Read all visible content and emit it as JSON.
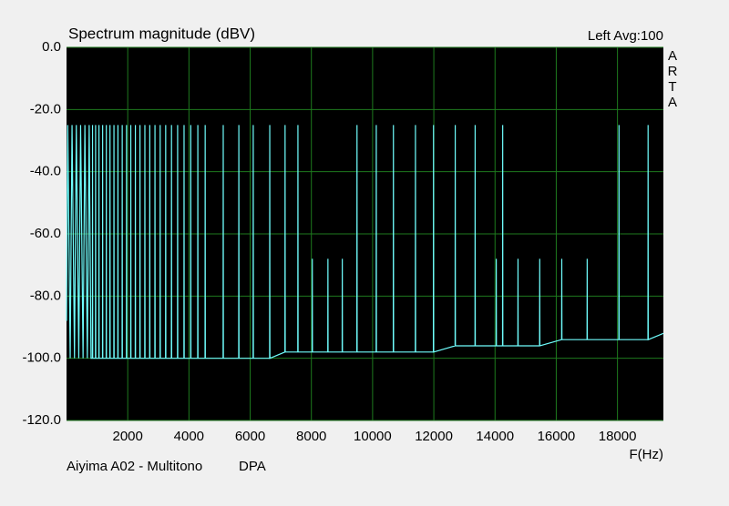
{
  "chart_data": {
    "type": "line",
    "title": "Spectrum magnitude (dBV)",
    "channel_info": "Left  Avg:100",
    "brand_letters": [
      "A",
      "R",
      "T",
      "A"
    ],
    "x_label": "F(Hz)",
    "footer_left": "Aiyima A02 - Multitono",
    "footer_right": "DPA",
    "color": "#6ffcfc",
    "grid": true,
    "xlim": [
      0,
      19500
    ],
    "xticks": [
      2000,
      4000,
      6000,
      8000,
      10000,
      12000,
      14000,
      16000,
      18000
    ],
    "ylim": [
      -120,
      0
    ],
    "yticks": [
      {
        "value": 0,
        "label": "0.0"
      },
      {
        "value": -20,
        "label": "-20.0"
      },
      {
        "value": -40,
        "label": "-40.0"
      },
      {
        "value": -60,
        "label": "-60.0"
      },
      {
        "value": -80,
        "label": "-80.0"
      },
      {
        "value": -100,
        "label": "-100.0"
      },
      {
        "value": -120,
        "label": "-120.0"
      }
    ],
    "x": [
      0,
      40,
      120,
      180,
      260,
      320,
      400,
      460,
      540,
      600,
      680,
      740,
      800,
      845,
      850,
      855,
      945,
      950,
      955,
      1055,
      1060,
      1065,
      1175,
      1180,
      1185,
      1295,
      1300,
      1305,
      1415,
      1420,
      1425,
      1545,
      1550,
      1555,
      1675,
      1680,
      1685,
      1815,
      1820,
      1825,
      1955,
      1960,
      1965,
      2095,
      2100,
      2105,
      2245,
      2250,
      2255,
      2395,
      2400,
      2405,
      2555,
      2560,
      2565,
      2715,
      2720,
      2725,
      2885,
      2890,
      2895,
      3055,
      3060,
      3065,
      3235,
      3240,
      3245,
      3425,
      3430,
      3435,
      3625,
      3630,
      3635,
      3835,
      3840,
      3845,
      4055,
      4060,
      4065,
      4285,
      4290,
      4295,
      4525,
      4530,
      4535,
      5115,
      5120,
      5125,
      5625,
      5630,
      5635,
      6095,
      6100,
      6105,
      6635,
      6640,
      6645,
      7135,
      7140,
      7145,
      7555,
      7560,
      7565,
      8025,
      8030,
      8035,
      8535,
      8540,
      8545,
      9005,
      9010,
      9015,
      9485,
      9490,
      9495,
      10115,
      10120,
      10125,
      10675,
      10680,
      10685,
      11395,
      11400,
      11405,
      11985,
      11990,
      11995,
      12695,
      12700,
      12705,
      13345,
      13350,
      13355,
      14035,
      14040,
      14045,
      14245,
      14250,
      14255,
      14745,
      14750,
      14755,
      15455,
      15460,
      15465,
      16175,
      16180,
      16185,
      17005,
      17010,
      17015,
      18045,
      18050,
      18055,
      18995,
      19000,
      19005,
      19500
    ],
    "values": [
      -88,
      -25,
      -100,
      -25,
      -100,
      -25,
      -100,
      -25,
      -100,
      -25,
      -100,
      -25,
      -100,
      -100,
      -25,
      -100,
      -100,
      -25,
      -100,
      -100,
      -25,
      -100,
      -100,
      -25,
      -100,
      -100,
      -25,
      -100,
      -100,
      -25,
      -100,
      -100,
      -25,
      -100,
      -100,
      -25,
      -100,
      -100,
      -25,
      -100,
      -100,
      -25,
      -100,
      -100,
      -25,
      -100,
      -100,
      -25,
      -100,
      -100,
      -25,
      -100,
      -100,
      -25,
      -100,
      -100,
      -25,
      -100,
      -100,
      -25,
      -100,
      -100,
      -25,
      -100,
      -100,
      -25,
      -100,
      -100,
      -25,
      -100,
      -100,
      -25,
      -100,
      -100,
      -25,
      -100,
      -100,
      -25,
      -100,
      -100,
      -25,
      -100,
      -100,
      -25,
      -100,
      -100,
      -25,
      -100,
      -100,
      -25,
      -100,
      -100,
      -25,
      -100,
      -100,
      -25,
      -100,
      -98,
      -25,
      -98,
      -98,
      -25,
      -98,
      -98,
      -68,
      -98,
      -98,
      -68,
      -98,
      -98,
      -68,
      -98,
      -98,
      -25,
      -98,
      -98,
      -25,
      -98,
      -98,
      -25,
      -98,
      -98,
      -25,
      -98,
      -98,
      -25,
      -98,
      -96,
      -25,
      -96,
      -96,
      -25,
      -96,
      -96,
      -68,
      -96,
      -96,
      -25,
      -96,
      -96,
      -68,
      -96,
      -96,
      -68,
      -96,
      -94,
      -68,
      -94,
      -94,
      -68,
      -94,
      -94,
      -25,
      -94,
      -94,
      -25,
      -94,
      -92
    ]
  }
}
